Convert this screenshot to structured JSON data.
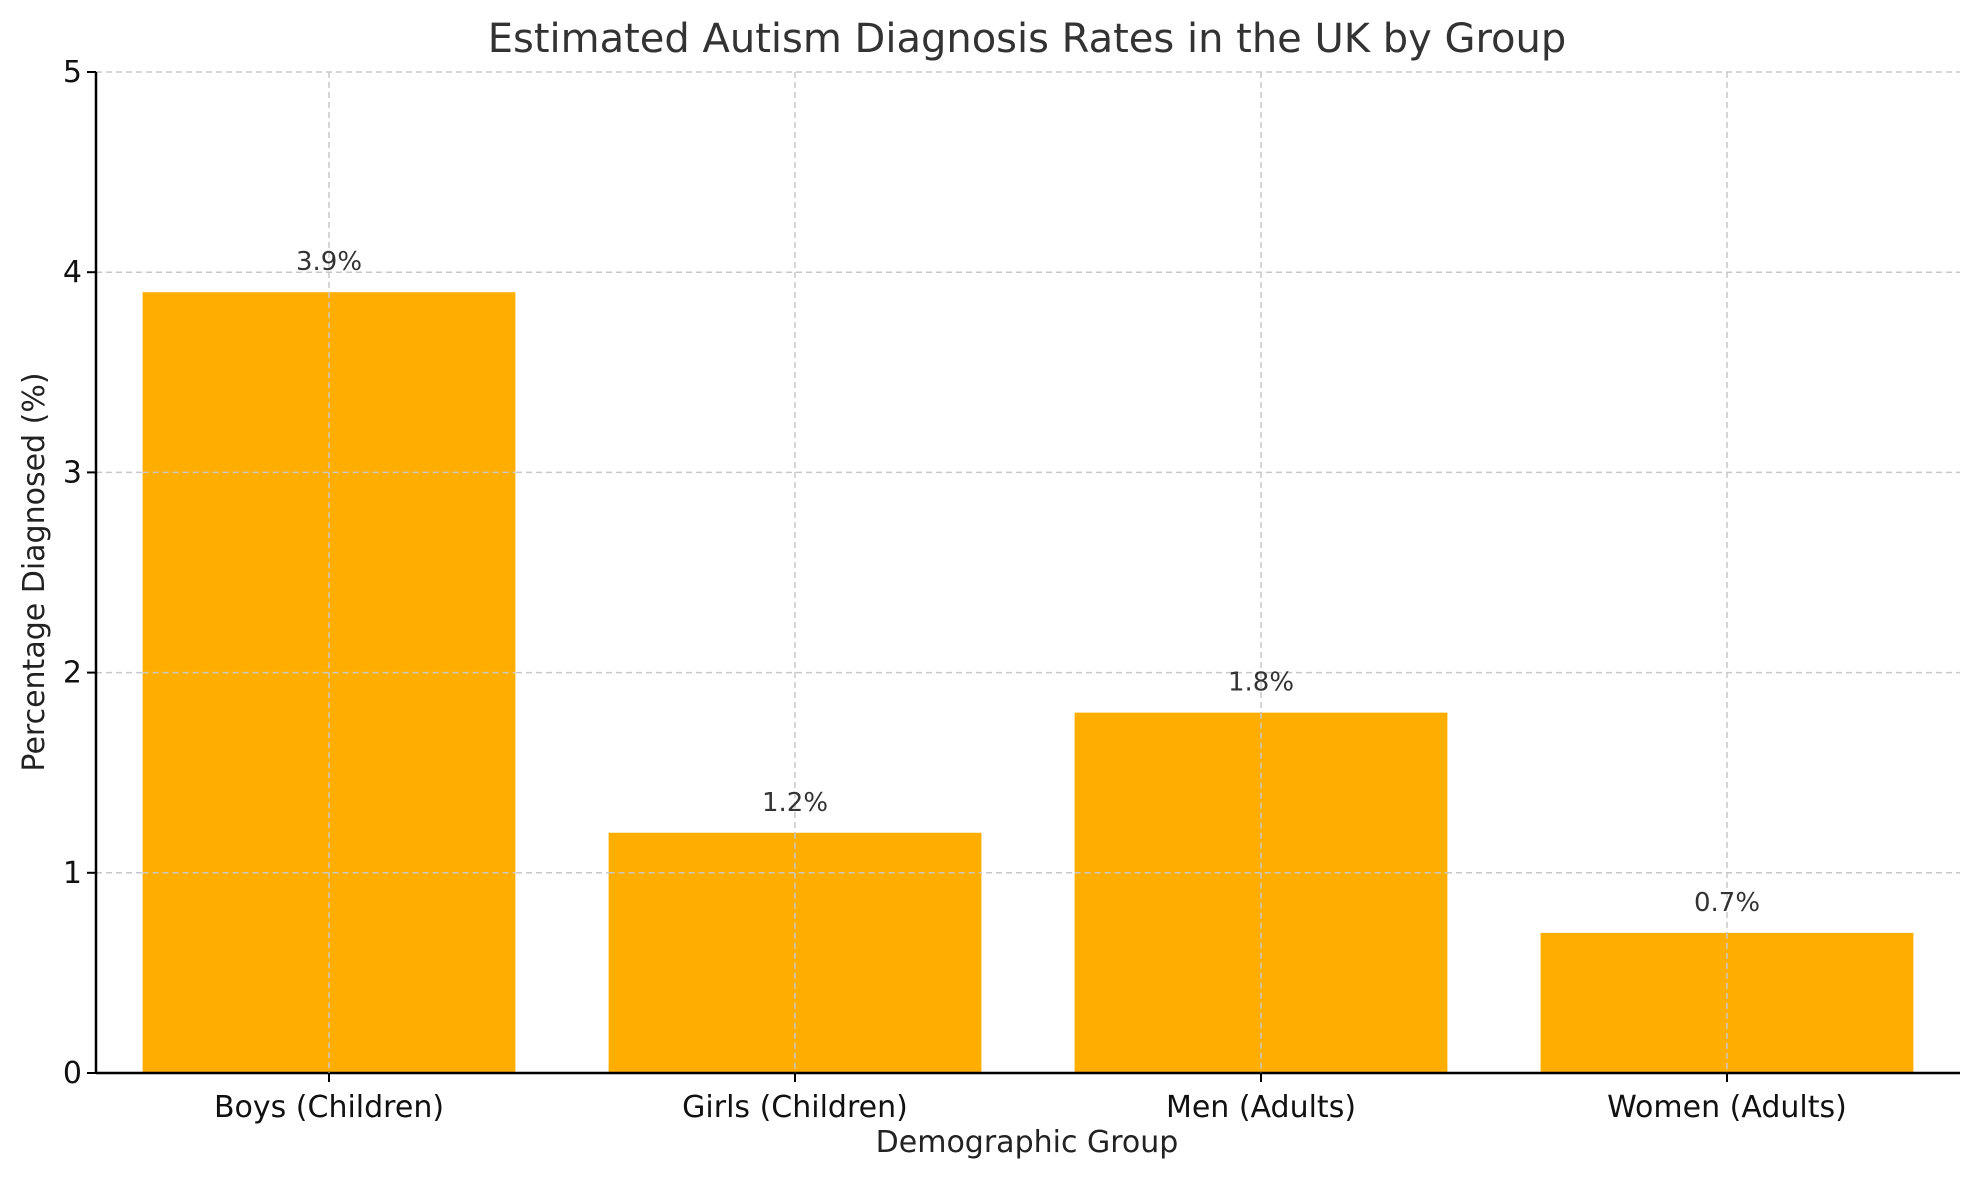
{
  "chart_data": {
    "type": "bar",
    "title": "Estimated Autism Diagnosis Rates in the UK by Group",
    "xlabel": "Demographic Group",
    "ylabel": "Percentage Diagnosed (%)",
    "categories": [
      "Boys (Children)",
      "Girls (Children)",
      "Men (Adults)",
      "Women (Adults)"
    ],
    "values": [
      3.9,
      1.2,
      1.8,
      0.7
    ],
    "data_labels": [
      "3.9%",
      "1.2%",
      "1.8%",
      "0.7%"
    ],
    "ylim": [
      0,
      5
    ],
    "yticks": [
      0,
      1,
      2,
      3,
      4,
      5
    ],
    "ytick_labels": [
      "0",
      "1",
      "2",
      "3",
      "4",
      "5"
    ],
    "grid": true,
    "bar_color": "#FFAE00"
  }
}
